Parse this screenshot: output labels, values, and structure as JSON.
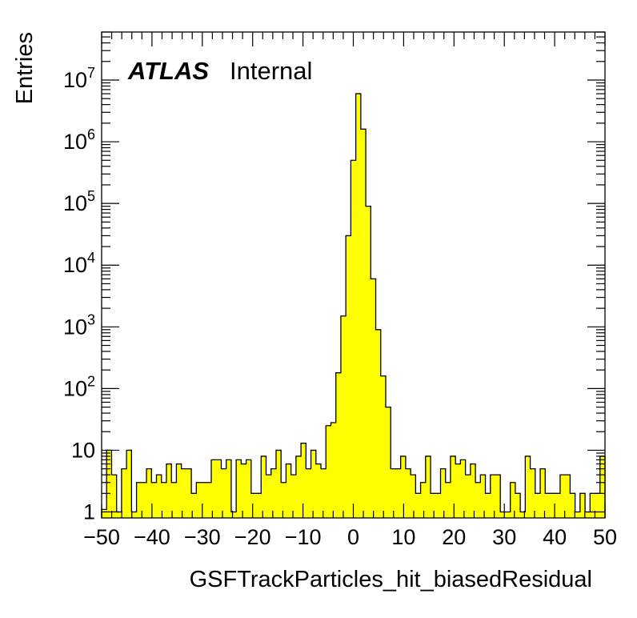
{
  "chart_data": {
    "type": "bar",
    "title": "",
    "xlabel": "GSFTrackParticles_hit_biasedResidual",
    "ylabel": "Entries",
    "xlim": [
      -50,
      50
    ],
    "ylim": [
      0.8,
      60000000
    ],
    "yscale": "log",
    "grid": false,
    "fill_color": "#ffff00",
    "line_color": "#000000",
    "bin_width": 1.6667,
    "x_ticks": [
      -50,
      -40,
      -30,
      -20,
      -10,
      0,
      10,
      20,
      30,
      40,
      50
    ],
    "x_tick_labels": [
      "−50",
      "−40",
      "−30",
      "−20",
      "−10",
      "0",
      "10",
      "20",
      "30",
      "40",
      "50"
    ],
    "y_ticks": [
      {
        "value": 1,
        "base": "1",
        "exp": ""
      },
      {
        "value": 10,
        "base": "10",
        "exp": ""
      },
      {
        "value": 100,
        "base": "10",
        "exp": "2"
      },
      {
        "value": 1000,
        "base": "10",
        "exp": "3"
      },
      {
        "value": 10000,
        "base": "10",
        "exp": "4"
      },
      {
        "value": 100000,
        "base": "10",
        "exp": "5"
      },
      {
        "value": 1000000,
        "base": "10",
        "exp": "6"
      },
      {
        "value": 10000000,
        "base": "10",
        "exp": "7"
      }
    ],
    "annotations": [
      {
        "text": "ATLAS",
        "style": "bold-italic"
      },
      {
        "text": "Internal",
        "style": "normal"
      }
    ],
    "values": [
      1.1,
      10,
      4,
      1,
      5,
      10,
      1,
      3,
      3,
      5,
      3,
      4,
      3,
      6,
      3,
      6,
      5,
      5,
      2,
      3,
      3,
      3,
      7,
      7,
      5,
      7,
      1,
      7,
      6,
      7,
      2,
      2,
      8,
      4,
      5,
      10,
      3,
      6,
      4,
      8,
      13,
      5,
      10,
      6,
      5,
      25,
      28,
      180,
      1500,
      30000,
      500000,
      6000000,
      1600000,
      90000,
      6000,
      900,
      160,
      50,
      5,
      5,
      8,
      5,
      4,
      2,
      3,
      8,
      2,
      2,
      5,
      3,
      8,
      6,
      7,
      4,
      6,
      3,
      4,
      2,
      4,
      4,
      1,
      1,
      3,
      2,
      1,
      8,
      5,
      2,
      5,
      2,
      2,
      2,
      4,
      4,
      2,
      1,
      2,
      1,
      2,
      2,
      8
    ]
  }
}
